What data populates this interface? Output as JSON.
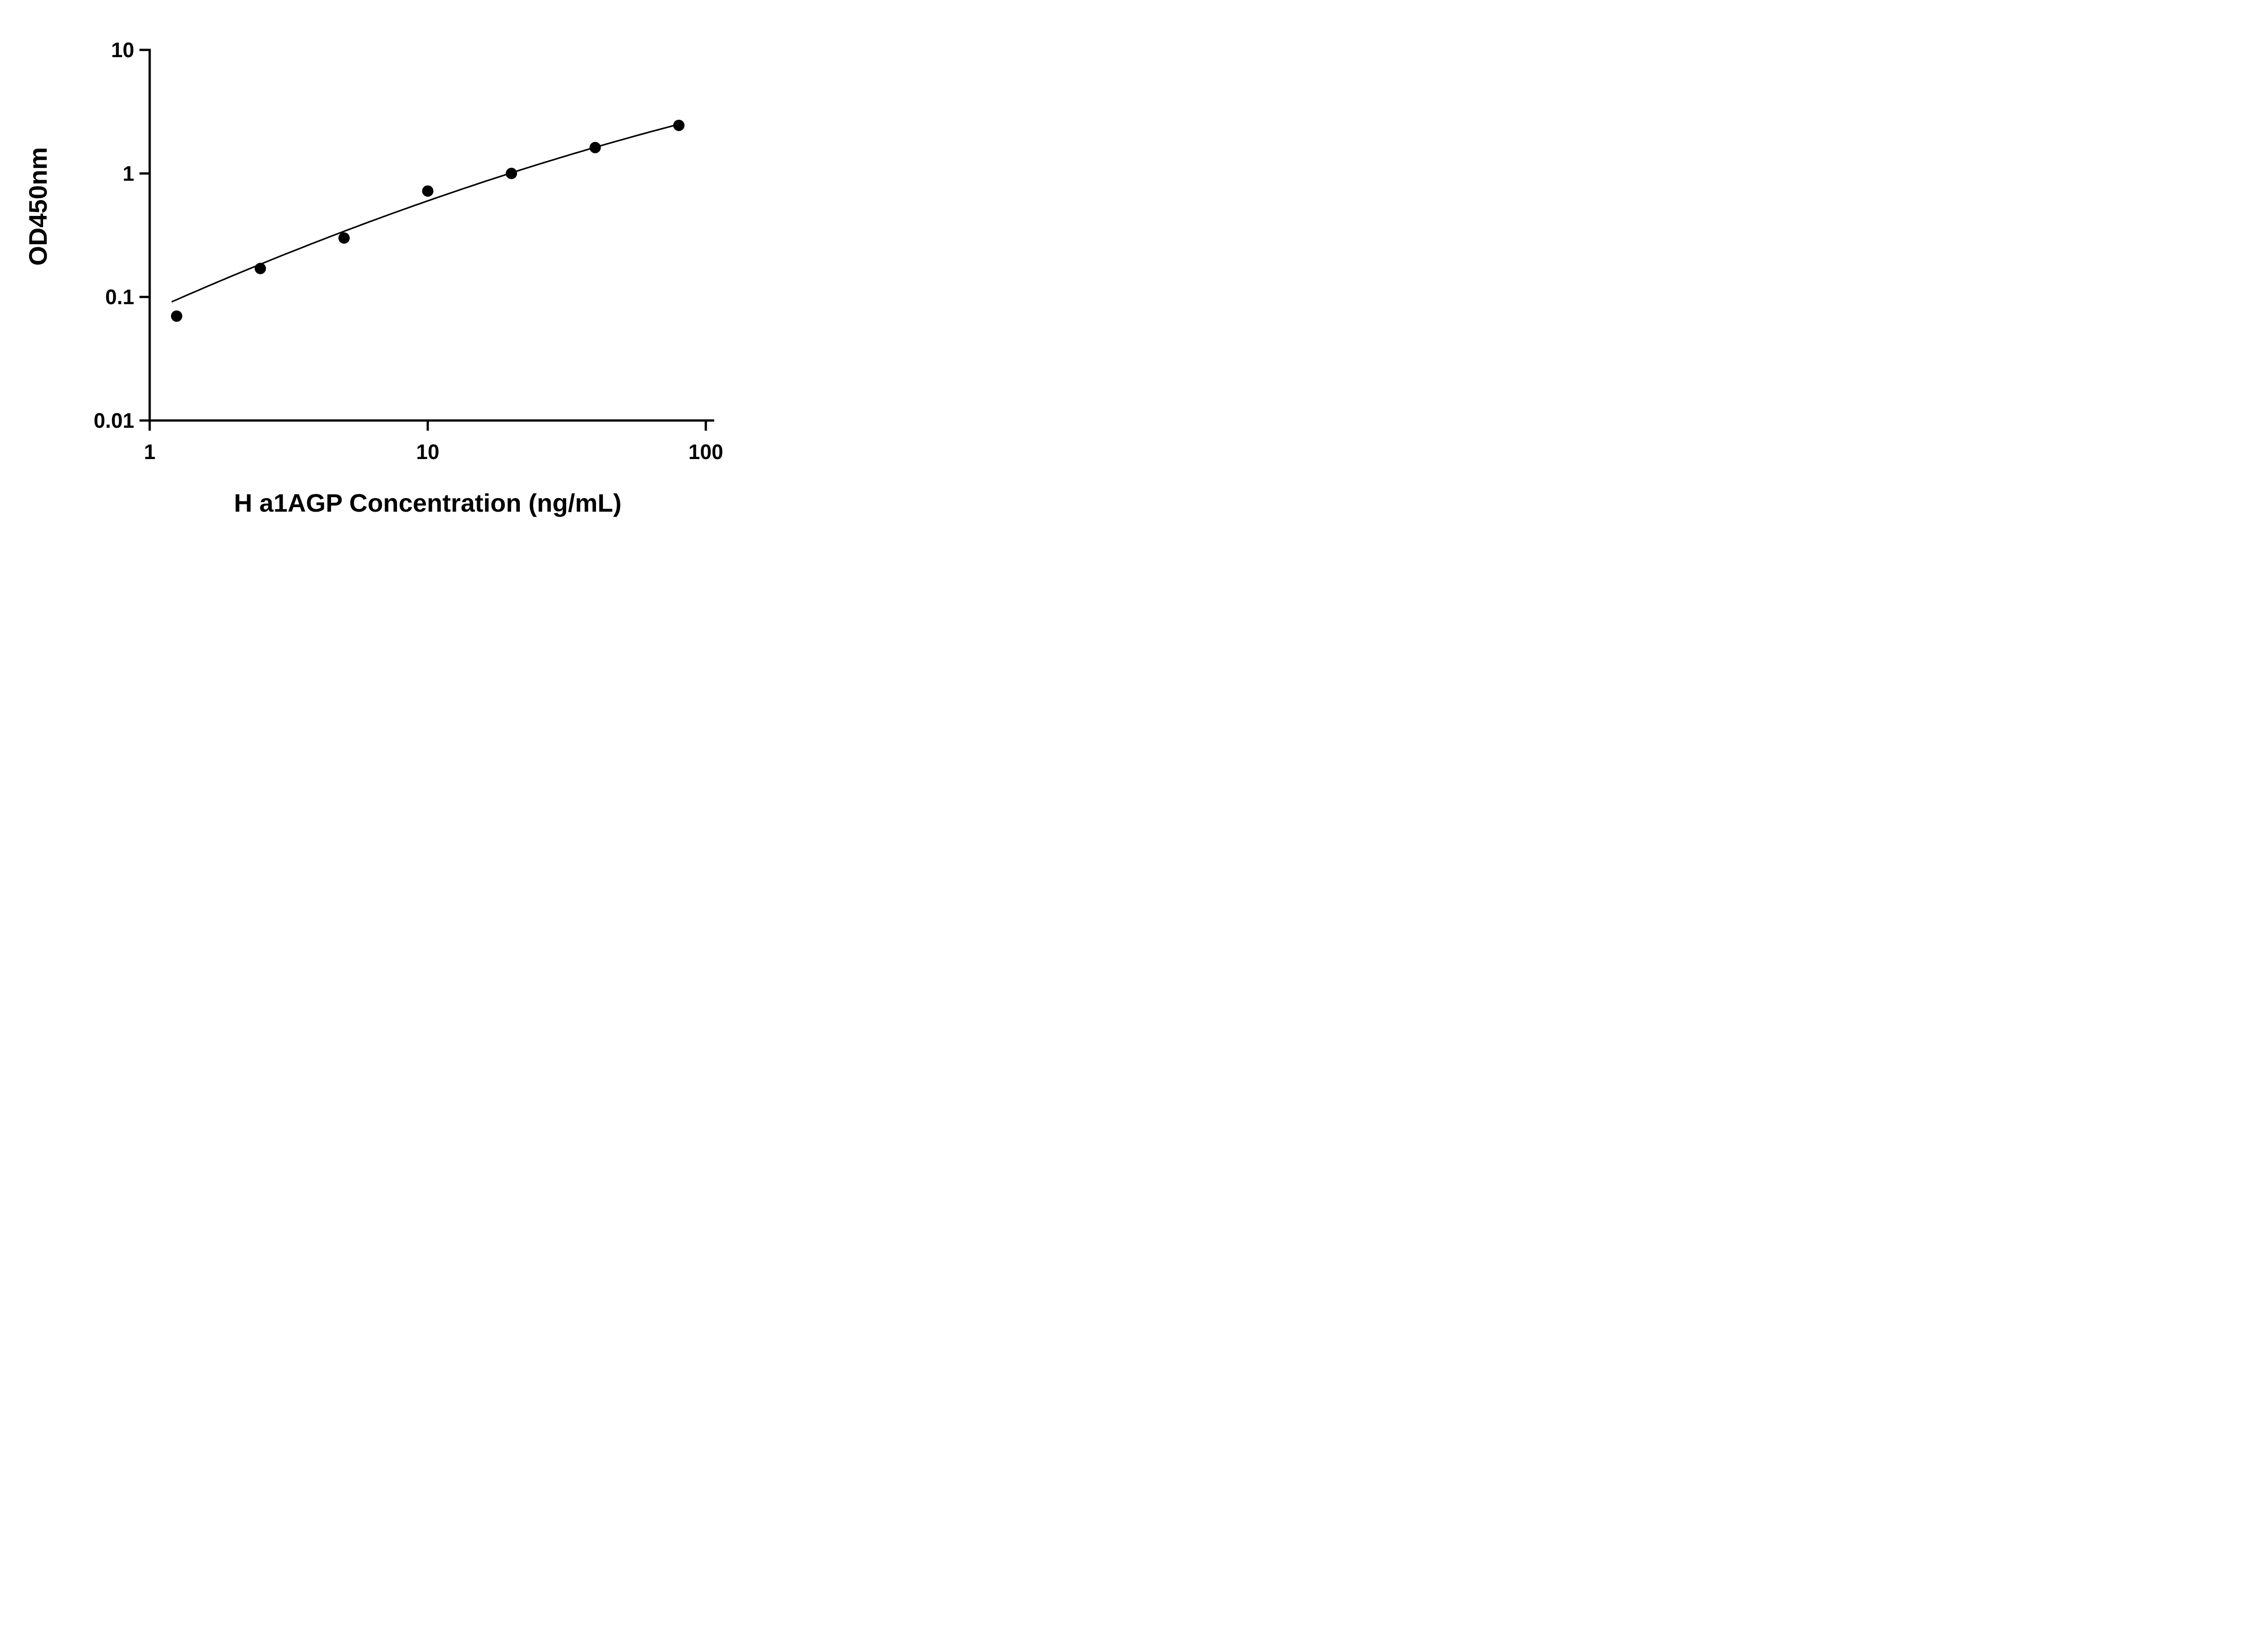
{
  "figure": {
    "background": "#ffffff",
    "ink": "#000000"
  },
  "chart_data": {
    "type": "scatter",
    "title": "",
    "xlabel": "H a1AGP Concentration (ng/mL)",
    "ylabel": "OD450nm",
    "x_scale": "log10",
    "y_scale": "log10",
    "xlim": [
      1,
      100
    ],
    "ylim": [
      0.01,
      10
    ],
    "grid": false,
    "legend": null,
    "x_ticks": [
      {
        "value": 1,
        "label": "1"
      },
      {
        "value": 10,
        "label": "10"
      },
      {
        "value": 100,
        "label": "100"
      }
    ],
    "y_ticks": [
      {
        "value": 0.01,
        "label": "0.01"
      },
      {
        "value": 0.1,
        "label": "0.1"
      },
      {
        "value": 1,
        "label": "1"
      },
      {
        "value": 10,
        "label": "10"
      }
    ],
    "points": [
      {
        "x": 1.25,
        "y": 0.07
      },
      {
        "x": 2.5,
        "y": 0.17
      },
      {
        "x": 5,
        "y": 0.3
      },
      {
        "x": 10,
        "y": 0.72
      },
      {
        "x": 20,
        "y": 1.0
      },
      {
        "x": 40,
        "y": 1.62
      },
      {
        "x": 80,
        "y": 2.45
      }
    ],
    "marker": {
      "shape": "circle",
      "radius_px": 12.5,
      "color": "#000000"
    },
    "fit_curve": {
      "model": "log10(y) = a + b*t + c*t^2, where t = log10(x)",
      "a": -1.1185,
      "b": 1.0068,
      "c": -0.1103,
      "x_start": 1.2,
      "x_end": 80,
      "color": "#000000"
    }
  }
}
